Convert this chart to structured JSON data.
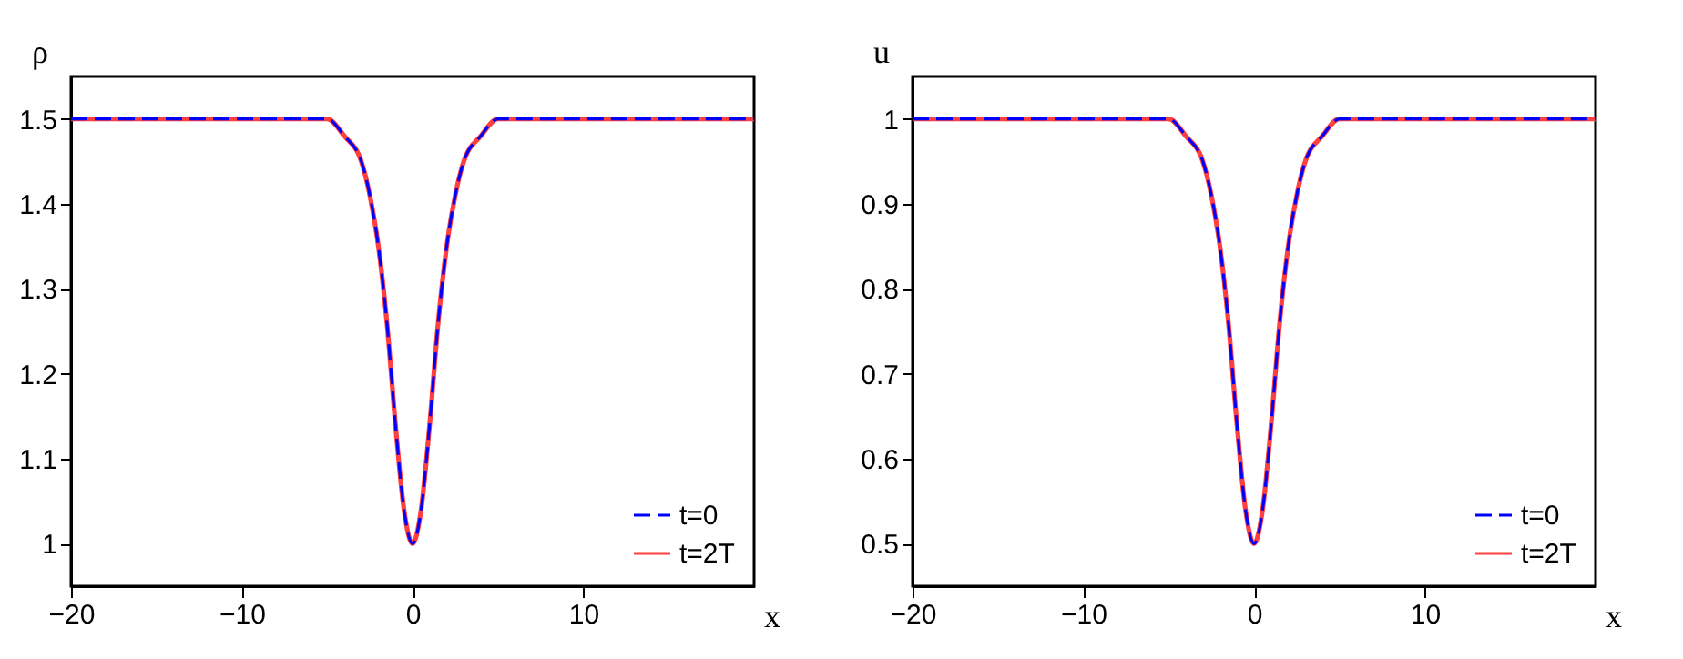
{
  "chart_data": [
    {
      "type": "line",
      "xlabel": "x",
      "ylabel": "ρ",
      "xlim": [
        -20,
        20
      ],
      "xticks": [
        -20,
        -10,
        0,
        10
      ],
      "ylim": [
        0.95,
        1.55
      ],
      "yticks": [
        1,
        1.1,
        1.2,
        1.3,
        1.4,
        1.5
      ],
      "grid": false,
      "legend": "bottom right",
      "marker": "none",
      "x": [
        -20,
        -8,
        -6,
        -5,
        -4,
        -3,
        -2.5,
        -2,
        -1.5,
        -1,
        -0.5,
        0,
        0.5,
        1,
        1.5,
        2,
        2.5,
        3,
        4,
        5,
        6,
        8,
        20
      ],
      "series": [
        {
          "name": "t=0",
          "color": "#0000ff",
          "line_style": "dashed",
          "values": [
            1.5,
            1.5,
            1.5,
            1.5,
            1.48,
            1.45,
            1.41,
            1.35,
            1.26,
            1.14,
            1.04,
            1.0,
            1.04,
            1.14,
            1.26,
            1.35,
            1.41,
            1.45,
            1.48,
            1.5,
            1.5,
            1.5,
            1.5
          ]
        },
        {
          "name": "t=2T",
          "color": "#ff4040",
          "line_style": "solid",
          "values": [
            1.5,
            1.5,
            1.5,
            1.5,
            1.48,
            1.45,
            1.41,
            1.35,
            1.26,
            1.14,
            1.04,
            1.0,
            1.04,
            1.14,
            1.26,
            1.35,
            1.41,
            1.45,
            1.48,
            1.5,
            1.5,
            1.5,
            1.5
          ]
        }
      ]
    },
    {
      "type": "line",
      "xlabel": "x",
      "ylabel": "u",
      "xlim": [
        -20,
        20
      ],
      "xticks": [
        -20,
        -10,
        0,
        10
      ],
      "ylim": [
        0.45,
        1.05
      ],
      "yticks": [
        0.5,
        0.6,
        0.7,
        0.8,
        0.9,
        1
      ],
      "grid": false,
      "legend": "bottom right",
      "marker": "none",
      "x": [
        -20,
        -8,
        -6,
        -5,
        -4,
        -3,
        -2.5,
        -2,
        -1.5,
        -1,
        -0.5,
        0,
        0.5,
        1,
        1.5,
        2,
        2.5,
        3,
        4,
        5,
        6,
        8,
        20
      ],
      "series": [
        {
          "name": "t=0",
          "color": "#0000ff",
          "line_style": "dashed",
          "values": [
            1.0,
            1.0,
            1.0,
            1.0,
            0.98,
            0.95,
            0.91,
            0.85,
            0.76,
            0.64,
            0.54,
            0.5,
            0.54,
            0.64,
            0.76,
            0.85,
            0.91,
            0.95,
            0.98,
            1.0,
            1.0,
            1.0,
            1.0
          ]
        },
        {
          "name": "t=2T",
          "color": "#ff4040",
          "line_style": "solid",
          "values": [
            1.0,
            1.0,
            1.0,
            1.0,
            0.98,
            0.95,
            0.91,
            0.85,
            0.76,
            0.64,
            0.54,
            0.5,
            0.54,
            0.64,
            0.76,
            0.85,
            0.91,
            0.95,
            0.98,
            1.0,
            1.0,
            1.0,
            1.0
          ]
        }
      ]
    }
  ]
}
